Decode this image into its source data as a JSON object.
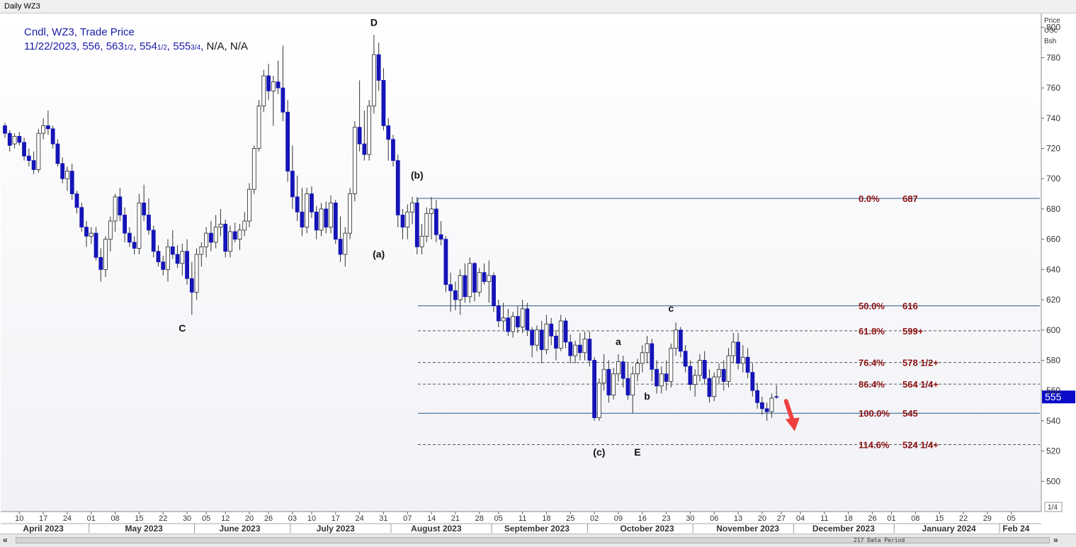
{
  "window": {
    "title": "Daily WZ3"
  },
  "legend": {
    "line1": "Cndl, WZ3, Trade Price",
    "date": "11/22/2023",
    "open": "556",
    "high_whole": "563",
    "high_frac": "1/2",
    "low_whole": "554",
    "low_frac": "1/2",
    "close_whole": "555",
    "close_frac": "3/4",
    "extra": "N/A, N/A"
  },
  "price_axis": {
    "header": [
      "Price",
      "USc",
      "Bsh"
    ],
    "min": 480,
    "max": 805,
    "ticks": [
      500,
      520,
      540,
      560,
      580,
      600,
      620,
      640,
      660,
      680,
      700,
      720,
      740,
      760,
      780,
      800
    ],
    "last_price_label": "555",
    "last_price": 555.75,
    "corner_label": "1/4"
  },
  "time_axis": {
    "day_ticks": [
      {
        "i": 3,
        "label": "10"
      },
      {
        "i": 8,
        "label": "17"
      },
      {
        "i": 13,
        "label": "24"
      },
      {
        "i": 18,
        "label": "01"
      },
      {
        "i": 23,
        "label": "08"
      },
      {
        "i": 28,
        "label": "15"
      },
      {
        "i": 33,
        "label": "22"
      },
      {
        "i": 38,
        "label": "30"
      },
      {
        "i": 42,
        "label": "05"
      },
      {
        "i": 46,
        "label": "12"
      },
      {
        "i": 51,
        "label": "20"
      },
      {
        "i": 55,
        "label": "26"
      },
      {
        "i": 60,
        "label": "03"
      },
      {
        "i": 64,
        "label": "10"
      },
      {
        "i": 69,
        "label": "17"
      },
      {
        "i": 74,
        "label": "24"
      },
      {
        "i": 79,
        "label": "31"
      },
      {
        "i": 84,
        "label": "07"
      },
      {
        "i": 89,
        "label": "14"
      },
      {
        "i": 94,
        "label": "21"
      },
      {
        "i": 99,
        "label": "28"
      },
      {
        "i": 103,
        "label": "05"
      },
      {
        "i": 108,
        "label": "11"
      },
      {
        "i": 113,
        "label": "18"
      },
      {
        "i": 118,
        "label": "25"
      },
      {
        "i": 123,
        "label": "02"
      },
      {
        "i": 128,
        "label": "09"
      },
      {
        "i": 133,
        "label": "16"
      },
      {
        "i": 138,
        "label": "23"
      },
      {
        "i": 143,
        "label": "30"
      },
      {
        "i": 148,
        "label": "06"
      },
      {
        "i": 153,
        "label": "13"
      },
      {
        "i": 158,
        "label": "20"
      },
      {
        "i": 162,
        "label": "27"
      },
      {
        "i": 166,
        "label": "04"
      },
      {
        "i": 171,
        "label": "11"
      },
      {
        "i": 176,
        "label": "18"
      },
      {
        "i": 181,
        "label": "26"
      },
      {
        "i": 185,
        "label": "01"
      },
      {
        "i": 190,
        "label": "08"
      },
      {
        "i": 195,
        "label": "15"
      },
      {
        "i": 200,
        "label": "22"
      },
      {
        "i": 205,
        "label": "29"
      },
      {
        "i": 210,
        "label": "05"
      }
    ],
    "months": [
      {
        "i": 8,
        "label": "April 2023",
        "sep": null
      },
      {
        "i": 29,
        "label": "May 2023",
        "sep": 18
      },
      {
        "i": 49,
        "label": "June 2023",
        "sep": 40
      },
      {
        "i": 69,
        "label": "July 2023",
        "sep": 60
      },
      {
        "i": 90,
        "label": "August 2023",
        "sep": 81
      },
      {
        "i": 111,
        "label": "September 2023",
        "sep": 102
      },
      {
        "i": 134,
        "label": "October 2023",
        "sep": 122
      },
      {
        "i": 155,
        "label": "November 2023",
        "sep": 144
      },
      {
        "i": 175,
        "label": "December 2023",
        "sep": 165
      },
      {
        "i": 197,
        "label": "January 2024",
        "sep": 186
      },
      {
        "i": 211,
        "label": "Feb 24",
        "sep": 208
      }
    ]
  },
  "footer": {
    "period_label": "217 Data Period",
    "nav_left": "«",
    "nav_right": "»"
  },
  "colors": {
    "bull_body": "#ffffff",
    "bear_body": "#1414b8",
    "wick": "#333333",
    "fib_text": "#8b1010",
    "fib_solid": "#2a5a8a",
    "fib_dashed": "#555555",
    "arrow": "#f04040",
    "price_tag": "#0a0ac8"
  },
  "chart_data": {
    "type": "candlestick",
    "title": "Daily WZ3",
    "series_name": "Cndl, WZ3, Trade Price",
    "ylabel": "Price USc Bsh",
    "ylim": [
      480,
      805
    ],
    "grid": false,
    "candles": [
      [
        735,
        737,
        727,
        730
      ],
      [
        730,
        732,
        718,
        722
      ],
      [
        723,
        730,
        720,
        728
      ],
      [
        728,
        731,
        722,
        724
      ],
      [
        724,
        727,
        712,
        715
      ],
      [
        715,
        720,
        708,
        712
      ],
      [
        712,
        718,
        703,
        706
      ],
      [
        706,
        733,
        704,
        730
      ],
      [
        730,
        740,
        726,
        735
      ],
      [
        735,
        745,
        729,
        733
      ],
      [
        733,
        735,
        720,
        723
      ],
      [
        723,
        726,
        708,
        710
      ],
      [
        710,
        714,
        697,
        700
      ],
      [
        700,
        708,
        692,
        705
      ],
      [
        705,
        710,
        686,
        690
      ],
      [
        690,
        692,
        677,
        681
      ],
      [
        681,
        684,
        665,
        668
      ],
      [
        668,
        672,
        655,
        662
      ],
      [
        662,
        668,
        657,
        664
      ],
      [
        664,
        668,
        646,
        648
      ],
      [
        648,
        654,
        632,
        640
      ],
      [
        640,
        662,
        635,
        660
      ],
      [
        660,
        675,
        652,
        672
      ],
      [
        672,
        690,
        665,
        688
      ],
      [
        688,
        694,
        672,
        676
      ],
      [
        676,
        681,
        658,
        664
      ],
      [
        664,
        668,
        655,
        658
      ],
      [
        658,
        662,
        650,
        654
      ],
      [
        654,
        690,
        650,
        684
      ],
      [
        684,
        696,
        672,
        676
      ],
      [
        676,
        687,
        663,
        666
      ],
      [
        666,
        669,
        648,
        652
      ],
      [
        652,
        656,
        642,
        645
      ],
      [
        645,
        649,
        636,
        640
      ],
      [
        640,
        660,
        632,
        655
      ],
      [
        655,
        666,
        647,
        650
      ],
      [
        650,
        656,
        641,
        644
      ],
      [
        644,
        657,
        636,
        652
      ],
      [
        652,
        660,
        630,
        634
      ],
      [
        634,
        645,
        610,
        625
      ],
      [
        625,
        654,
        620,
        650
      ],
      [
        650,
        658,
        642,
        655
      ],
      [
        655,
        668,
        648,
        664
      ],
      [
        664,
        672,
        652,
        658
      ],
      [
        658,
        676,
        654,
        668
      ],
      [
        668,
        680,
        662,
        670
      ],
      [
        670,
        673,
        648,
        652
      ],
      [
        652,
        669,
        648,
        665
      ],
      [
        665,
        671,
        658,
        660
      ],
      [
        660,
        670,
        653,
        666
      ],
      [
        666,
        678,
        662,
        672
      ],
      [
        672,
        697,
        668,
        693
      ],
      [
        693,
        722,
        690,
        720
      ],
      [
        720,
        752,
        718,
        748
      ],
      [
        748,
        772,
        744,
        768
      ],
      [
        768,
        776,
        752,
        758
      ],
      [
        758,
        768,
        735,
        764
      ],
      [
        764,
        778,
        756,
        760
      ],
      [
        760,
        788,
        738,
        744
      ],
      [
        744,
        752,
        698,
        705
      ],
      [
        705,
        722,
        680,
        688
      ],
      [
        688,
        702,
        672,
        678
      ],
      [
        678,
        694,
        662,
        668
      ],
      [
        668,
        694,
        664,
        690
      ],
      [
        690,
        695,
        674,
        678
      ],
      [
        678,
        682,
        660,
        666
      ],
      [
        666,
        684,
        662,
        680
      ],
      [
        680,
        685,
        664,
        668
      ],
      [
        668,
        689,
        664,
        684
      ],
      [
        684,
        686,
        657,
        660
      ],
      [
        660,
        675,
        645,
        650
      ],
      [
        650,
        668,
        642,
        664
      ],
      [
        664,
        694,
        660,
        690
      ],
      [
        690,
        738,
        685,
        734
      ],
      [
        734,
        765,
        718,
        723
      ],
      [
        723,
        745,
        712,
        716
      ],
      [
        716,
        752,
        712,
        748
      ],
      [
        748,
        795,
        743,
        782
      ],
      [
        782,
        790,
        758,
        765
      ],
      [
        765,
        773,
        732,
        735
      ],
      [
        735,
        740,
        712,
        726
      ],
      [
        726,
        729,
        708,
        712
      ],
      [
        712,
        716,
        668,
        676
      ],
      [
        676,
        680,
        660,
        668
      ],
      [
        668,
        683,
        660,
        678
      ],
      [
        678,
        688,
        670,
        684
      ],
      [
        684,
        688,
        650,
        655
      ],
      [
        655,
        670,
        650,
        662
      ],
      [
        662,
        681,
        658,
        677
      ],
      [
        677,
        688,
        660,
        680
      ],
      [
        680,
        686,
        658,
        663
      ],
      [
        663,
        672,
        656,
        660
      ],
      [
        660,
        662,
        625,
        630
      ],
      [
        630,
        638,
        612,
        626
      ],
      [
        626,
        632,
        613,
        620
      ],
      [
        620,
        640,
        610,
        636
      ],
      [
        636,
        644,
        618,
        622
      ],
      [
        622,
        648,
        618,
        644
      ],
      [
        644,
        645,
        619,
        625
      ],
      [
        625,
        641,
        622,
        638
      ],
      [
        638,
        644,
        630,
        632
      ],
      [
        632,
        646,
        618,
        636
      ],
      [
        636,
        638,
        612,
        616
      ],
      [
        616,
        620,
        602,
        606
      ],
      [
        606,
        618,
        600,
        608
      ],
      [
        608,
        614,
        596,
        599
      ],
      [
        599,
        612,
        595,
        609
      ],
      [
        609,
        616,
        598,
        602
      ],
      [
        602,
        620,
        598,
        614
      ],
      [
        614,
        618,
        596,
        600
      ],
      [
        600,
        602,
        582,
        590
      ],
      [
        590,
        603,
        586,
        600
      ],
      [
        600,
        606,
        578,
        587
      ],
      [
        587,
        610,
        584,
        604
      ],
      [
        604,
        608,
        590,
        596
      ],
      [
        596,
        600,
        580,
        588
      ],
      [
        588,
        610,
        586,
        606
      ],
      [
        606,
        608,
        588,
        592
      ],
      [
        592,
        597,
        578,
        583
      ],
      [
        583,
        593,
        578,
        590
      ],
      [
        590,
        598,
        580,
        585
      ],
      [
        585,
        599,
        580,
        594
      ],
      [
        594,
        599,
        576,
        580
      ],
      [
        580,
        582,
        540,
        542
      ],
      [
        542,
        568,
        540,
        565
      ],
      [
        565,
        584,
        560,
        574
      ],
      [
        574,
        580,
        552,
        557
      ],
      [
        557,
        575,
        554,
        571
      ],
      [
        571,
        584,
        566,
        579
      ],
      [
        579,
        583,
        562,
        568
      ],
      [
        568,
        578,
        554,
        557
      ],
      [
        557,
        576,
        545,
        571
      ],
      [
        571,
        581,
        566,
        578
      ],
      [
        578,
        590,
        572,
        585
      ],
      [
        585,
        596,
        578,
        591
      ],
      [
        591,
        594,
        566,
        574
      ],
      [
        574,
        580,
        558,
        563
      ],
      [
        563,
        576,
        558,
        571
      ],
      [
        571,
        580,
        560,
        566
      ],
      [
        566,
        591,
        562,
        588
      ],
      [
        588,
        605,
        583,
        600
      ],
      [
        600,
        602,
        582,
        586
      ],
      [
        586,
        590,
        572,
        576
      ],
      [
        576,
        580,
        560,
        564
      ],
      [
        564,
        574,
        556,
        570
      ],
      [
        570,
        584,
        566,
        580
      ],
      [
        580,
        586,
        564,
        568
      ],
      [
        568,
        574,
        552,
        556
      ],
      [
        556,
        572,
        553,
        569
      ],
      [
        569,
        578,
        564,
        574
      ],
      [
        574,
        580,
        560,
        566
      ],
      [
        566,
        588,
        562,
        583
      ],
      [
        583,
        598,
        578,
        592
      ],
      [
        592,
        598,
        574,
        578
      ],
      [
        578,
        590,
        572,
        582
      ],
      [
        582,
        588,
        568,
        572
      ],
      [
        572,
        578,
        556,
        560
      ],
      [
        560,
        565,
        548,
        552
      ],
      [
        552,
        556,
        544,
        548
      ],
      [
        548,
        552,
        540,
        546
      ],
      [
        546,
        558,
        542,
        555
      ],
      [
        556,
        563.5,
        554.5,
        555.75
      ]
    ],
    "fib_levels": [
      {
        "label": "0.0%",
        "value_label": "687",
        "price": 687,
        "style": "solid"
      },
      {
        "label": "50.0%",
        "value_label": "616",
        "price": 616,
        "style": "solid"
      },
      {
        "label": "61.8%",
        "value_label": "599+",
        "price": 599.5,
        "style": "dashed"
      },
      {
        "label": "76.4%",
        "value_label": "578 1/2+",
        "price": 578.5,
        "style": "dashed"
      },
      {
        "label": "86.4%",
        "value_label": "564 1/4+",
        "price": 564.25,
        "style": "dashed"
      },
      {
        "label": "100.0%",
        "value_label": "545",
        "price": 545,
        "style": "solid"
      },
      {
        "label": "114.6%",
        "value_label": "524 1/4+",
        "price": 524.25,
        "style": "dashed"
      }
    ],
    "wave_labels": [
      {
        "text": "D",
        "i": 77,
        "price": 801
      },
      {
        "text": "C",
        "i": 37,
        "price": 599
      },
      {
        "text": "(b)",
        "i": 86,
        "price": 700
      },
      {
        "text": "(a)",
        "i": 78,
        "price": 648
      },
      {
        "text": "c",
        "i": 139,
        "price": 612
      },
      {
        "text": "a",
        "i": 128,
        "price": 590
      },
      {
        "text": "b",
        "i": 134,
        "price": 554
      },
      {
        "text": "(c)",
        "i": 124,
        "price": 517
      },
      {
        "text": "E",
        "i": 132,
        "price": 517
      }
    ],
    "forecast_arrow": {
      "from_i": 163,
      "from_price": 553,
      "to_i": 164.5,
      "to_price": 535
    }
  }
}
